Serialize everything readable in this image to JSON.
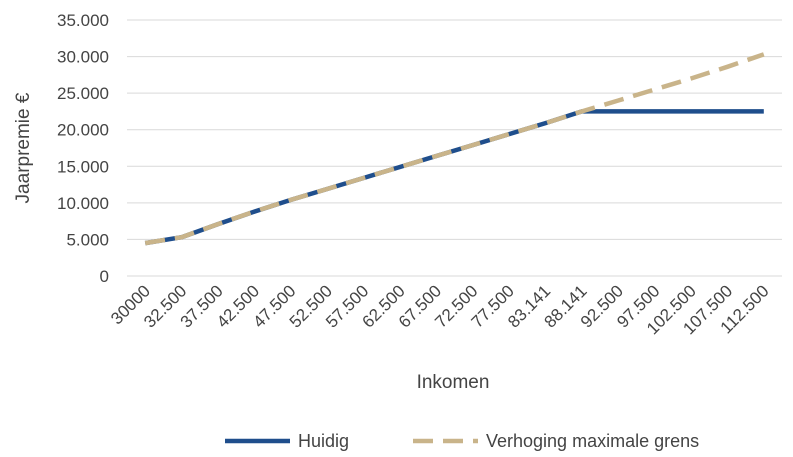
{
  "chart_data": {
    "type": "line",
    "title": "",
    "xlabel": "Inkomen",
    "ylabel": "Jaarpremie €",
    "categories": [
      "30000",
      "32.500",
      "37.500",
      "42.500",
      "47.500",
      "52.500",
      "57.500",
      "62.500",
      "67.500",
      "72.500",
      "77.500",
      "83.141",
      "88.141",
      "92.500",
      "97.500",
      "102.500",
      "107.500",
      "112.500"
    ],
    "y_ticks": [
      "0",
      "5.000",
      "10.000",
      "15.000",
      "20.000",
      "25.000",
      "30.000",
      "35.000"
    ],
    "ylim": [
      0,
      35000
    ],
    "grid": true,
    "legend_position": "bottom",
    "series": [
      {
        "name": "Huidig",
        "color": "#1f4e8c",
        "style": "solid",
        "values": [
          4500,
          5300,
          7100,
          8800,
          10400,
          11900,
          13400,
          14900,
          16400,
          17900,
          19400,
          20900,
          22500,
          22500,
          22500,
          22500,
          22500,
          22500
        ]
      },
      {
        "name": "Verhoging maximale grens",
        "color": "#c9b48a",
        "style": "dashed",
        "values": [
          4500,
          5300,
          7100,
          8800,
          10400,
          11900,
          13400,
          14900,
          16400,
          17900,
          19400,
          20900,
          22500,
          24000,
          25500,
          27000,
          28600,
          30300
        ]
      }
    ]
  }
}
